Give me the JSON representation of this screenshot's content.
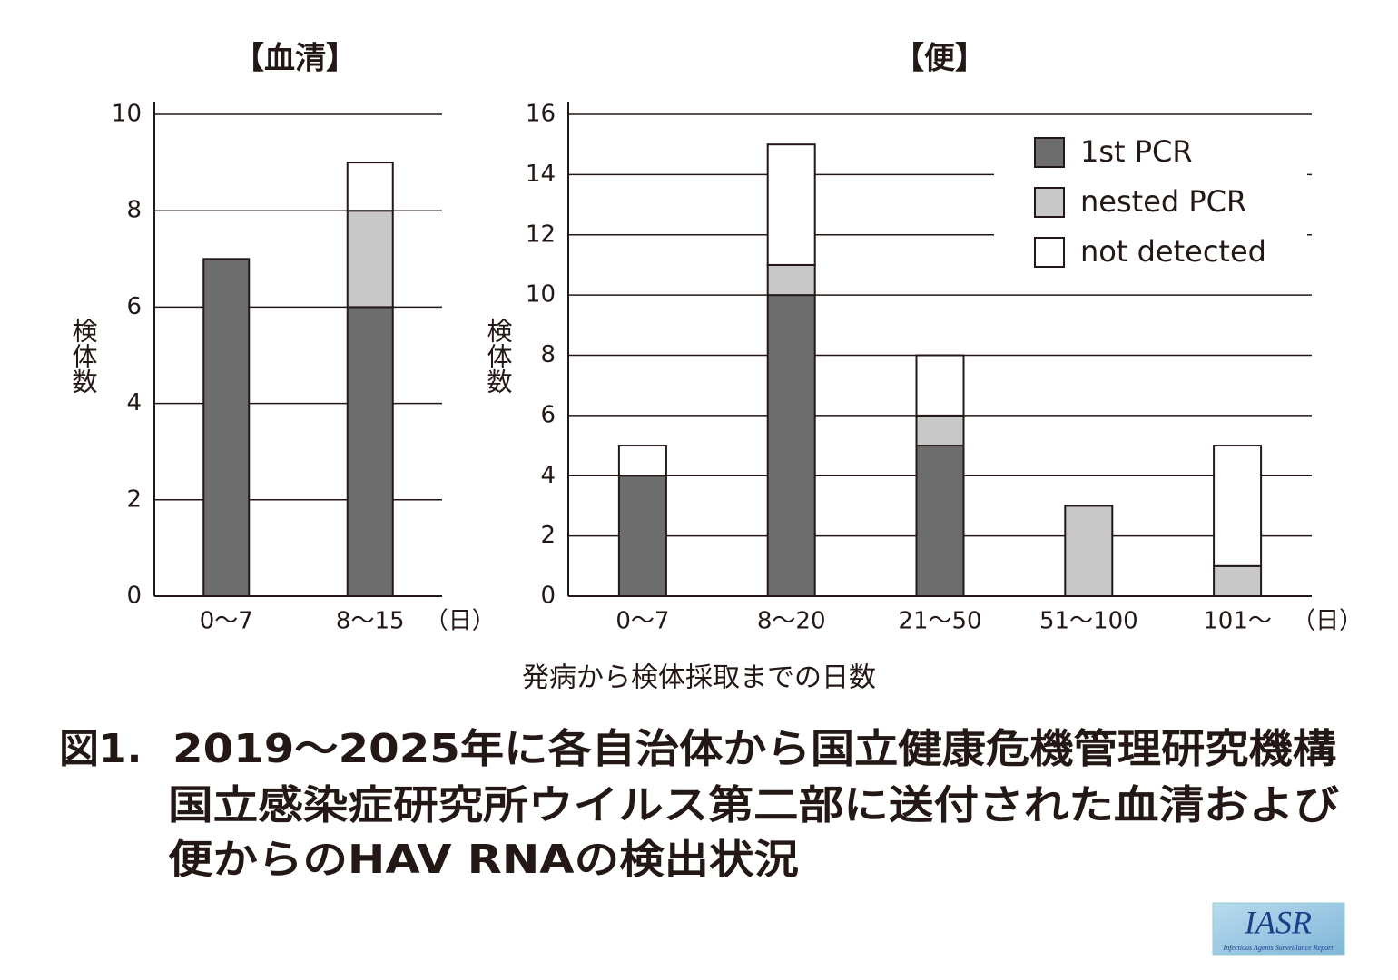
{
  "chart_data": [
    {
      "type": "bar",
      "stacked": true,
      "title": "【血清】",
      "ylabel": "検体数",
      "x_unit": "（日）",
      "categories": [
        "0〜7",
        "8〜15"
      ],
      "series": [
        {
          "color": "#6d6d6d",
          "values": [
            7,
            6
          ]
        },
        {
          "color": "#c8c8c8",
          "values": [
            0,
            2
          ]
        },
        {
          "color": "#ffffff",
          "values": [
            0,
            1
          ]
        }
      ],
      "ylim": [
        0,
        10
      ],
      "yticks": [
        0,
        2,
        4,
        6,
        8,
        10
      ],
      "grid": true,
      "legend": "none"
    },
    {
      "type": "bar",
      "stacked": true,
      "title": "【便】",
      "ylabel": "検体数",
      "x_unit": "（日）",
      "categories": [
        "0〜7",
        "8〜20",
        "21〜50",
        "51〜100",
        "101〜"
      ],
      "series": [
        {
          "name": "1st PCR",
          "color": "#6d6d6d",
          "values": [
            4,
            10,
            5,
            0,
            0
          ]
        },
        {
          "name": "nested PCR",
          "color": "#c8c8c8",
          "values": [
            0,
            1,
            1,
            3,
            1
          ]
        },
        {
          "name": "not detected",
          "color": "#ffffff",
          "values": [
            1,
            4,
            2,
            0,
            4
          ]
        }
      ],
      "ylim": [
        0,
        16
      ],
      "yticks": [
        0,
        2,
        4,
        6,
        8,
        10,
        12,
        14,
        16
      ],
      "grid": true,
      "legend": "upper right"
    }
  ],
  "xlabel": "発病から検体採取までの日数",
  "caption": {
    "label": "図1.",
    "lines": [
      "2019〜2025年に各自治体から国立健康危機管理研究機構",
      "国立感染症研究所ウイルス第二部に送付された血清および",
      "便からのHAV RNAの検出状況"
    ]
  },
  "logo": {
    "title": "IASR",
    "subtitle": "Infectious Agents Surveillance Report"
  }
}
